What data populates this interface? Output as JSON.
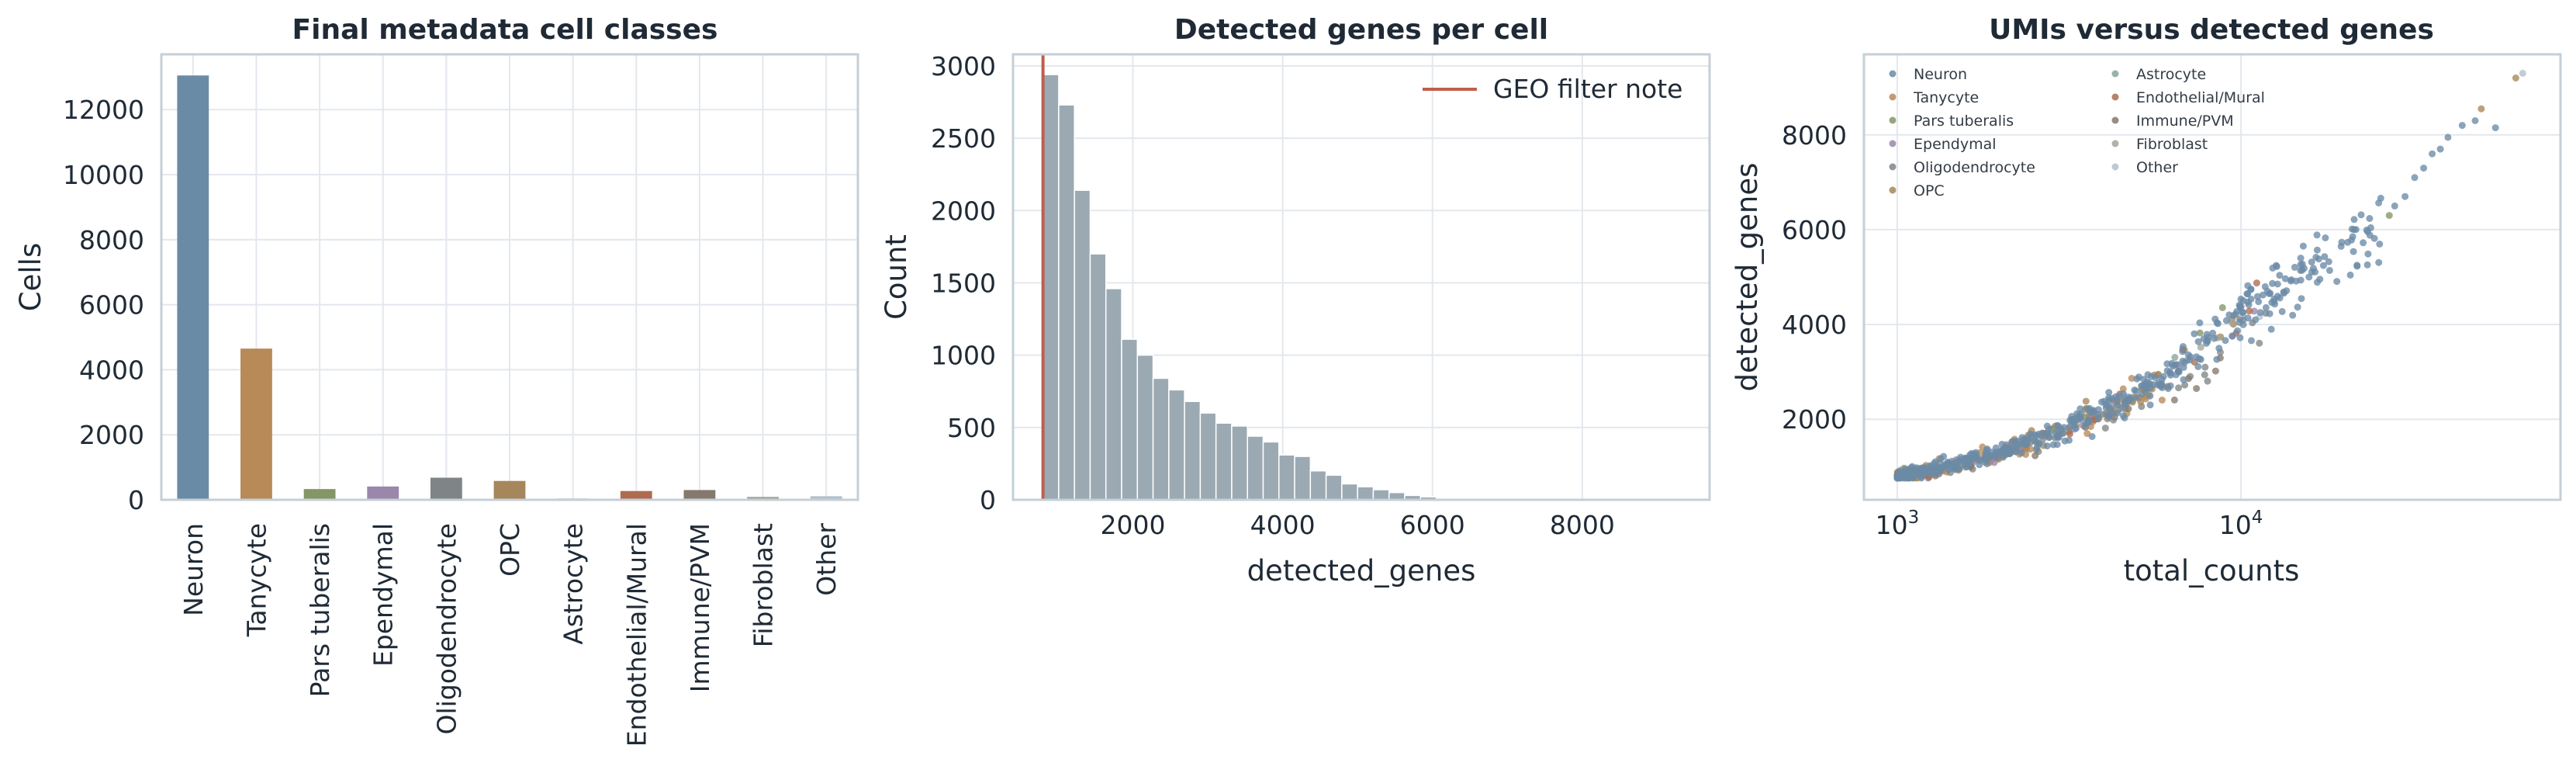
{
  "colors": {
    "Neuron": "#6a8ba6",
    "Tanycyte": "#b88a57",
    "Pars tuberalis": "#849566",
    "Ependymal": "#9a87ab",
    "Oligodendrocyte": "#7f8587",
    "OPC": "#a6875b",
    "Astrocyte": "#86a795",
    "Endothelial/Mural": "#ae6b4f",
    "Immune/PVM": "#85786c",
    "Fibroblast": "#a4a499",
    "Other": "#b1c0cb",
    "histogram": "#9ba9b3",
    "filter_line": "#bf5f4c"
  },
  "chart_data": [
    {
      "type": "bar",
      "title": "Final metadata cell classes",
      "xlabel": "",
      "ylabel": "Cells",
      "categories": [
        "Neuron",
        "Tanycyte",
        "Pars tuberalis",
        "Ependymal",
        "Oligodendrocyte",
        "OPC",
        "Astrocyte",
        "Endothelial/Mural",
        "Immune/PVM",
        "Fibroblast",
        "Other"
      ],
      "values": [
        13050,
        4650,
        330,
        410,
        680,
        580,
        40,
        270,
        300,
        90,
        110
      ],
      "ylim": [
        0,
        13700
      ],
      "yticks": [
        0,
        2000,
        4000,
        6000,
        8000,
        10000,
        12000
      ],
      "grid": true
    },
    {
      "type": "bar",
      "subtype": "histogram",
      "title": "Detected genes per cell",
      "xlabel": "detected_genes",
      "ylabel": "Count",
      "bin_start": 800,
      "bin_width": 210,
      "counts": [
        2940,
        2730,
        2140,
        1700,
        1460,
        1110,
        1000,
        840,
        760,
        680,
        600,
        530,
        510,
        440,
        400,
        310,
        300,
        200,
        170,
        110,
        90,
        70,
        50,
        30,
        20,
        10,
        8,
        5,
        3,
        2,
        2,
        1,
        1,
        1,
        1,
        1,
        1,
        1,
        1,
        1
      ],
      "xlim": [
        400,
        9700
      ],
      "ylim": [
        0,
        3080
      ],
      "xticks": [
        2000,
        4000,
        6000,
        8000
      ],
      "yticks": [
        0,
        500,
        1000,
        1500,
        2000,
        2500,
        3000
      ],
      "reference_line": {
        "x": 800,
        "label": "GEO filter note"
      },
      "legend_position": "top-right",
      "grid": true
    },
    {
      "type": "scatter",
      "title": "UMIs versus detected genes",
      "xlabel": "total_counts",
      "ylabel": "detected_genes",
      "x_scale": "log",
      "xlim": [
        800,
        85000
      ],
      "ylim": [
        300,
        9700
      ],
      "xticks": [
        {
          "value": 1000,
          "base": "10",
          "exp": "3"
        },
        {
          "value": 10000,
          "base": "10",
          "exp": "4"
        }
      ],
      "yticks": [
        2000,
        4000,
        6000,
        8000
      ],
      "series": [
        {
          "name": "Neuron"
        },
        {
          "name": "Tanycyte"
        },
        {
          "name": "Pars tuberalis"
        },
        {
          "name": "Ependymal"
        },
        {
          "name": "Oligodendrocyte"
        },
        {
          "name": "OPC"
        },
        {
          "name": "Astrocyte"
        },
        {
          "name": "Endothelial/Mural"
        },
        {
          "name": "Immune/PVM"
        },
        {
          "name": "Fibroblast"
        },
        {
          "name": "Other"
        }
      ],
      "trend": {
        "x": [
          1000,
          1500,
          2500,
          4000,
          6000,
          10000,
          15000,
          20000,
          26000
        ],
        "y": [
          820,
          1050,
          1550,
          2200,
          2900,
          4100,
          5000,
          5600,
          6100
        ]
      },
      "outliers": [
        {
          "x": 66000,
          "y": 9300,
          "series": "Other"
        },
        {
          "x": 63000,
          "y": 9200,
          "series": "OPC"
        },
        {
          "x": 50000,
          "y": 8550,
          "series": "OPC"
        },
        {
          "x": 48000,
          "y": 8300,
          "series": "Neuron"
        },
        {
          "x": 55000,
          "y": 8150,
          "series": "Neuron"
        },
        {
          "x": 44000,
          "y": 8200,
          "series": "Neuron"
        },
        {
          "x": 40000,
          "y": 7950,
          "series": "Neuron"
        },
        {
          "x": 36000,
          "y": 7600,
          "series": "Neuron"
        },
        {
          "x": 34000,
          "y": 7300,
          "series": "Neuron"
        },
        {
          "x": 38000,
          "y": 7700,
          "series": "Neuron"
        },
        {
          "x": 32000,
          "y": 7100,
          "series": "Neuron"
        },
        {
          "x": 30000,
          "y": 6700,
          "series": "Neuron"
        },
        {
          "x": 28000,
          "y": 6500,
          "series": "Neuron"
        },
        {
          "x": 27000,
          "y": 6300,
          "series": "Pars tuberalis"
        }
      ],
      "legend_position": "top-left",
      "grid": true
    }
  ]
}
